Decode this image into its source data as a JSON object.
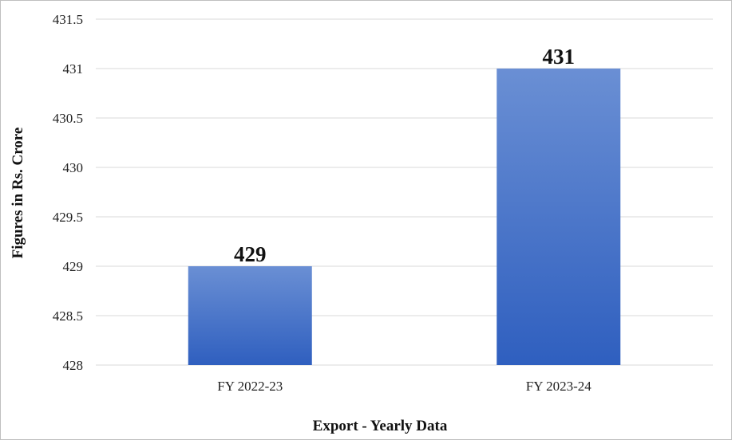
{
  "chart_data": {
    "type": "bar",
    "title": "",
    "xlabel": "Export - Yearly Data",
    "ylabel": "Figures in Rs. Crore",
    "categories": [
      "FY 2022-23",
      "FY 2023-24"
    ],
    "values": [
      429,
      431
    ],
    "data_labels": [
      "429",
      "431"
    ],
    "ylim": [
      428,
      431.5
    ],
    "y_ticks": [
      "428",
      "428.5",
      "429",
      "429.5",
      "430",
      "430.5",
      "431",
      "431.5"
    ],
    "grid": true,
    "legend": "none",
    "colors": {
      "bar_top": "#6a8fd4",
      "bar_bottom": "#2f5fbf",
      "gridline": "#d9d9d9"
    }
  }
}
